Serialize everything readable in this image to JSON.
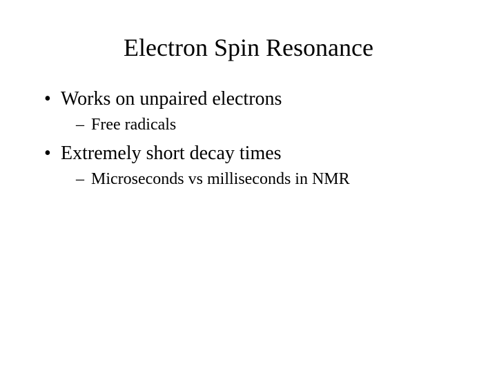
{
  "slide": {
    "title": "Electron Spin Resonance",
    "title_fontsize": 36,
    "background_color": "#ffffff",
    "text_color": "#000000",
    "font_family": "Times New Roman",
    "bullets": [
      {
        "level": 1,
        "text": "Works on unpaired electrons",
        "fontsize": 28,
        "marker": "•"
      },
      {
        "level": 2,
        "text": "Free radicals",
        "fontsize": 24,
        "marker": "–"
      },
      {
        "level": 1,
        "text": "Extremely short decay times",
        "fontsize": 28,
        "marker": "•"
      },
      {
        "level": 2,
        "text": "Microseconds vs milliseconds in NMR",
        "fontsize": 24,
        "marker": "–"
      }
    ]
  }
}
